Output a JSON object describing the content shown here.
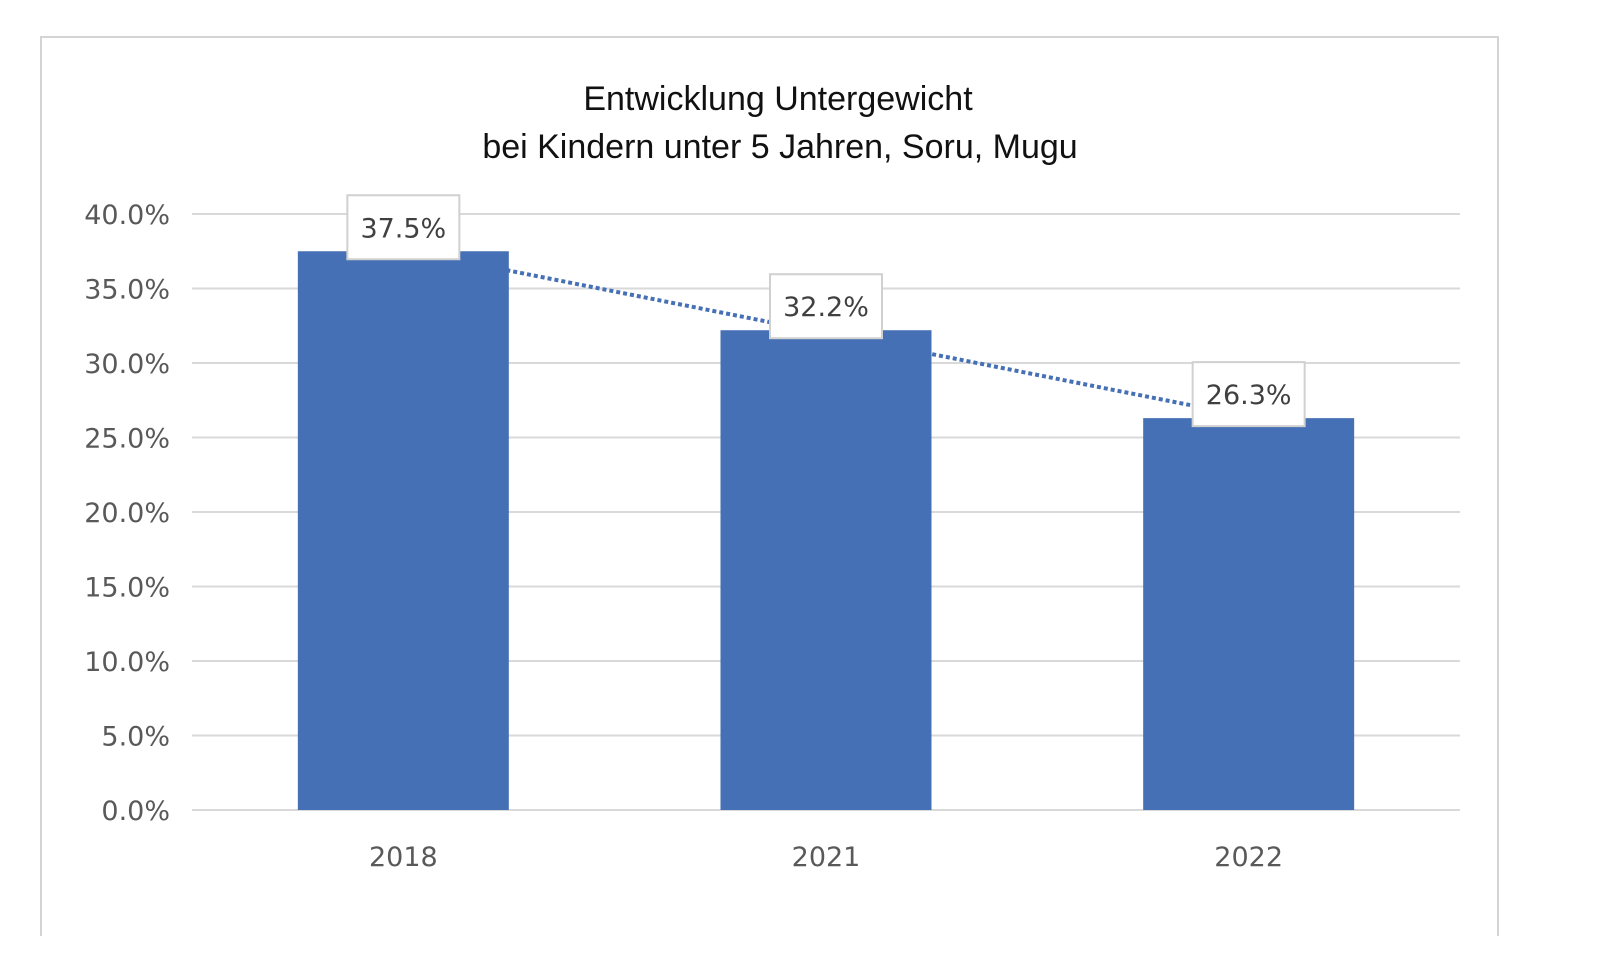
{
  "chart_data": {
    "type": "bar",
    "title_lines": [
      "Entwicklung Untergewicht",
      "bei Kindern unter 5 Jahren, Soru, Mugu"
    ],
    "categories": [
      "2018",
      "2021",
      "2022"
    ],
    "values": [
      37.5,
      32.2,
      26.3
    ],
    "data_labels": [
      "37.5%",
      "32.2%",
      "26.3%"
    ],
    "y_ticks": [
      "0.0%",
      "5.0%",
      "10.0%",
      "15.0%",
      "20.0%",
      "25.0%",
      "30.0%",
      "35.0%",
      "40.0%"
    ],
    "ylim": [
      0,
      40
    ],
    "grid": true,
    "trendline": "linear dotted",
    "colors": {
      "bar": "#4670b5",
      "grid": "#d9d9d9",
      "trend": "#4670b5"
    }
  }
}
